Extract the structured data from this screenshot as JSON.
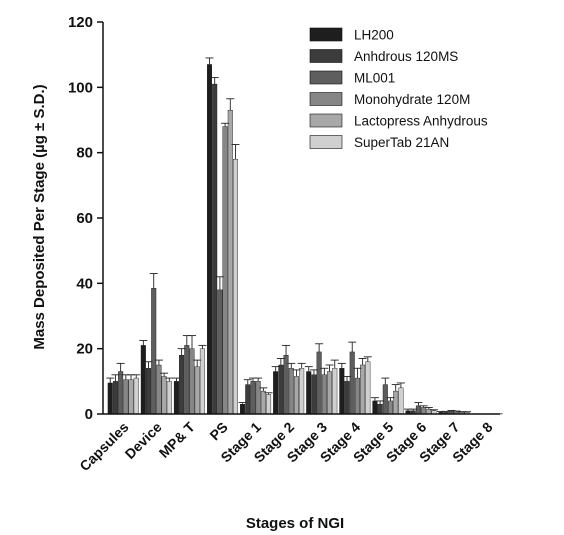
{
  "chart_data": {
    "type": "bar",
    "title": "",
    "xlabel": "Stages of NGI",
    "ylabel": "Mass Deposited Per Stage (µg ± S.D.)",
    "ylim": [
      0,
      120
    ],
    "yticks": [
      0,
      20,
      40,
      60,
      80,
      100,
      120
    ],
    "grid": false,
    "legend_position": "top-right",
    "categories": [
      "Capsules",
      "Device",
      "MP& T",
      "PS",
      "Stage 1",
      "Stage 2",
      "Stage 3",
      "Stage 4",
      "Stage 5",
      "Stage 6",
      "Stage 7",
      "Stage 8"
    ],
    "series": [
      {
        "name": "LH200",
        "color": "#1e1e1e",
        "values": [
          9.5,
          21,
          10,
          107,
          3,
          13,
          13,
          14,
          4,
          1.0,
          0.5,
          0.1
        ],
        "errors": [
          1.5,
          1.5,
          1.0,
          2.0,
          0.5,
          1.5,
          1.5,
          1.5,
          1.0,
          0.5,
          0.3,
          0.1
        ]
      },
      {
        "name": "Anhdrous 120MS",
        "color": "#3c3c3c",
        "values": [
          10,
          14,
          18,
          101,
          9,
          15,
          12,
          10,
          3,
          1.0,
          0.5,
          0.1
        ],
        "errors": [
          2.0,
          2.0,
          2.0,
          2.0,
          1.5,
          2.0,
          1.5,
          1.5,
          1.0,
          0.5,
          0.3,
          0.1
        ]
      },
      {
        "name": "ML001",
        "color": "#5e5e5e",
        "values": [
          13,
          38.5,
          21,
          38,
          10,
          18,
          19,
          19,
          9,
          2.5,
          0.8,
          0.1
        ],
        "errors": [
          2.5,
          4.5,
          3.0,
          4.0,
          1.0,
          3.0,
          2.5,
          3.0,
          2.0,
          1.0,
          0.3,
          0.1
        ]
      },
      {
        "name": "Monohydrate 120M",
        "color": "#868686",
        "values": [
          10.5,
          15,
          20,
          88,
          10,
          14,
          12,
          11,
          4,
          2.0,
          0.6,
          0.1
        ],
        "errors": [
          1.5,
          1.5,
          4.0,
          1.0,
          1.0,
          1.5,
          2.0,
          3.0,
          1.0,
          0.5,
          0.3,
          0.1
        ]
      },
      {
        "name": "Lactopress Anhydrous",
        "color": "#a8a8a8",
        "values": [
          10.5,
          11.5,
          14.5,
          93,
          7,
          11.5,
          13,
          15,
          7,
          1.5,
          0.5,
          0.1
        ],
        "errors": [
          1.5,
          1.0,
          2.0,
          3.5,
          1.0,
          2.0,
          2.0,
          2.0,
          2.0,
          0.5,
          0.2,
          0.1
        ]
      },
      {
        "name": "SuperTab 21AN",
        "color": "#d0d0d0",
        "values": [
          11,
          10,
          20,
          78,
          6,
          14,
          14,
          16,
          8,
          1.0,
          0.5,
          0.1
        ],
        "errors": [
          1.0,
          1.0,
          1.0,
          4.5,
          0.5,
          1.5,
          2.5,
          1.5,
          1.5,
          0.3,
          0.2,
          0.1
        ]
      }
    ]
  }
}
